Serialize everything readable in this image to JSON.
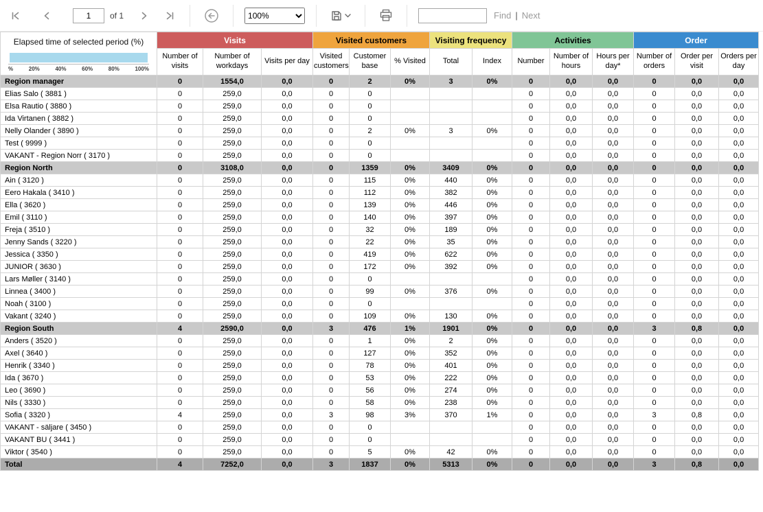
{
  "toolbar": {
    "page_input": "1",
    "of_label": "of 1",
    "zoom_value": "100%",
    "find_value": "",
    "find_label": "Find",
    "find_divider": "|",
    "next_label": "Next",
    "icons": {
      "first_page": "⏮",
      "previous_page": "◀",
      "next_page": "▶",
      "last_page": "⏭",
      "back": "←",
      "save": "💾",
      "save_caret": "⌄",
      "print": "🖨"
    }
  },
  "chart": {
    "title": "Elapsed time of selected period (%)",
    "bar_color": "#a8d9ed",
    "value_pct": 100,
    "axis_ticks": [
      "%",
      "20%",
      "40%",
      "60%",
      "80%",
      "100%"
    ]
  },
  "table": {
    "groups": [
      {
        "label": "Visits",
        "color": "#cd5c5c",
        "text_color": "#ffffff",
        "span": 3
      },
      {
        "label": "Visited customers",
        "color": "#efa43d",
        "text_color": "#000000",
        "span": 3
      },
      {
        "label": "Visiting frequency",
        "color": "#ece27d",
        "text_color": "#000000",
        "span": 2
      },
      {
        "label": "Activities",
        "color": "#80c596",
        "text_color": "#000000",
        "span": 3
      },
      {
        "label": "Order",
        "color": "#3a8bcf",
        "text_color": "#ffffff",
        "span": 3
      }
    ],
    "columns": [
      "Number of visits",
      "Number of workdays",
      "Visits per day",
      "Visited customers",
      "Customer base",
      "% Visited",
      "Total",
      "Index",
      "Number",
      "Number of hours",
      "Hours per day*",
      "Number of orders",
      "Order per visit",
      "Orders per day"
    ],
    "rows": [
      {
        "name": "Region manager",
        "type": "region",
        "cells": [
          "0",
          "1554,0",
          "0,0",
          "0",
          "2",
          "0%",
          "3",
          "0%",
          "0",
          "0,0",
          "0,0",
          "0",
          "0,0",
          "0,0"
        ]
      },
      {
        "name": "Elias Salo ( 3881 )",
        "type": "person",
        "cells": [
          "0",
          "259,0",
          "0,0",
          "0",
          "0",
          "",
          "",
          "",
          "0",
          "0,0",
          "0,0",
          "0",
          "0,0",
          "0,0"
        ]
      },
      {
        "name": "Elsa Rautio ( 3880 )",
        "type": "person",
        "cells": [
          "0",
          "259,0",
          "0,0",
          "0",
          "0",
          "",
          "",
          "",
          "0",
          "0,0",
          "0,0",
          "0",
          "0,0",
          "0,0"
        ]
      },
      {
        "name": "Ida Virtanen ( 3882 )",
        "type": "person",
        "cells": [
          "0",
          "259,0",
          "0,0",
          "0",
          "0",
          "",
          "",
          "",
          "0",
          "0,0",
          "0,0",
          "0",
          "0,0",
          "0,0"
        ]
      },
      {
        "name": "Nelly Olander ( 3890 )",
        "type": "person",
        "cells": [
          "0",
          "259,0",
          "0,0",
          "0",
          "2",
          "0%",
          "3",
          "0%",
          "0",
          "0,0",
          "0,0",
          "0",
          "0,0",
          "0,0"
        ]
      },
      {
        "name": "Test ( 9999 )",
        "type": "person",
        "cells": [
          "0",
          "259,0",
          "0,0",
          "0",
          "0",
          "",
          "",
          "",
          "0",
          "0,0",
          "0,0",
          "0",
          "0,0",
          "0,0"
        ]
      },
      {
        "name": "VAKANT - Region Norr ( 3170 )",
        "type": "person",
        "cells": [
          "0",
          "259,0",
          "0,0",
          "0",
          "0",
          "",
          "",
          "",
          "0",
          "0,0",
          "0,0",
          "0",
          "0,0",
          "0,0"
        ]
      },
      {
        "name": "Region North",
        "type": "region",
        "cells": [
          "0",
          "3108,0",
          "0,0",
          "0",
          "1359",
          "0%",
          "3409",
          "0%",
          "0",
          "0,0",
          "0,0",
          "0",
          "0,0",
          "0,0"
        ]
      },
      {
        "name": "Ain ( 3120 )",
        "type": "person",
        "cells": [
          "0",
          "259,0",
          "0,0",
          "0",
          "115",
          "0%",
          "440",
          "0%",
          "0",
          "0,0",
          "0,0",
          "0",
          "0,0",
          "0,0"
        ]
      },
      {
        "name": "Eero Hakala ( 3410 )",
        "type": "person",
        "cells": [
          "0",
          "259,0",
          "0,0",
          "0",
          "112",
          "0%",
          "382",
          "0%",
          "0",
          "0,0",
          "0,0",
          "0",
          "0,0",
          "0,0"
        ]
      },
      {
        "name": "Ella ( 3620 )",
        "type": "person",
        "cells": [
          "0",
          "259,0",
          "0,0",
          "0",
          "139",
          "0%",
          "446",
          "0%",
          "0",
          "0,0",
          "0,0",
          "0",
          "0,0",
          "0,0"
        ]
      },
      {
        "name": "Emil ( 3110 )",
        "type": "person",
        "cells": [
          "0",
          "259,0",
          "0,0",
          "0",
          "140",
          "0%",
          "397",
          "0%",
          "0",
          "0,0",
          "0,0",
          "0",
          "0,0",
          "0,0"
        ]
      },
      {
        "name": "Freja ( 3510 )",
        "type": "person",
        "cells": [
          "0",
          "259,0",
          "0,0",
          "0",
          "32",
          "0%",
          "189",
          "0%",
          "0",
          "0,0",
          "0,0",
          "0",
          "0,0",
          "0,0"
        ]
      },
      {
        "name": "Jenny Sands ( 3220 )",
        "type": "person",
        "cells": [
          "0",
          "259,0",
          "0,0",
          "0",
          "22",
          "0%",
          "35",
          "0%",
          "0",
          "0,0",
          "0,0",
          "0",
          "0,0",
          "0,0"
        ]
      },
      {
        "name": "Jessica ( 3350 )",
        "type": "person",
        "cells": [
          "0",
          "259,0",
          "0,0",
          "0",
          "419",
          "0%",
          "622",
          "0%",
          "0",
          "0,0",
          "0,0",
          "0",
          "0,0",
          "0,0"
        ]
      },
      {
        "name": "JUNIOR ( 3630 )",
        "type": "person",
        "cells": [
          "0",
          "259,0",
          "0,0",
          "0",
          "172",
          "0%",
          "392",
          "0%",
          "0",
          "0,0",
          "0,0",
          "0",
          "0,0",
          "0,0"
        ]
      },
      {
        "name": "Lars Møller ( 3140 )",
        "type": "person",
        "cells": [
          "0",
          "259,0",
          "0,0",
          "0",
          "0",
          "",
          "",
          "",
          "0",
          "0,0",
          "0,0",
          "0",
          "0,0",
          "0,0"
        ]
      },
      {
        "name": "Linnea ( 3400 )",
        "type": "person",
        "cells": [
          "0",
          "259,0",
          "0,0",
          "0",
          "99",
          "0%",
          "376",
          "0%",
          "0",
          "0,0",
          "0,0",
          "0",
          "0,0",
          "0,0"
        ]
      },
      {
        "name": "Noah ( 3100 )",
        "type": "person",
        "cells": [
          "0",
          "259,0",
          "0,0",
          "0",
          "0",
          "",
          "",
          "",
          "0",
          "0,0",
          "0,0",
          "0",
          "0,0",
          "0,0"
        ]
      },
      {
        "name": "Vakant ( 3240 )",
        "type": "person",
        "cells": [
          "0",
          "259,0",
          "0,0",
          "0",
          "109",
          "0%",
          "130",
          "0%",
          "0",
          "0,0",
          "0,0",
          "0",
          "0,0",
          "0,0"
        ]
      },
      {
        "name": "Region South",
        "type": "region",
        "cells": [
          "4",
          "2590,0",
          "0,0",
          "3",
          "476",
          "1%",
          "1901",
          "0%",
          "0",
          "0,0",
          "0,0",
          "3",
          "0,8",
          "0,0"
        ]
      },
      {
        "name": "Anders ( 3520 )",
        "type": "person",
        "cells": [
          "0",
          "259,0",
          "0,0",
          "0",
          "1",
          "0%",
          "2",
          "0%",
          "0",
          "0,0",
          "0,0",
          "0",
          "0,0",
          "0,0"
        ]
      },
      {
        "name": "Axel ( 3640 )",
        "type": "person",
        "cells": [
          "0",
          "259,0",
          "0,0",
          "0",
          "127",
          "0%",
          "352",
          "0%",
          "0",
          "0,0",
          "0,0",
          "0",
          "0,0",
          "0,0"
        ]
      },
      {
        "name": "Henrik ( 3340 )",
        "type": "person",
        "cells": [
          "0",
          "259,0",
          "0,0",
          "0",
          "78",
          "0%",
          "401",
          "0%",
          "0",
          "0,0",
          "0,0",
          "0",
          "0,0",
          "0,0"
        ]
      },
      {
        "name": "Ida ( 3670 )",
        "type": "person",
        "cells": [
          "0",
          "259,0",
          "0,0",
          "0",
          "53",
          "0%",
          "222",
          "0%",
          "0",
          "0,0",
          "0,0",
          "0",
          "0,0",
          "0,0"
        ]
      },
      {
        "name": "Leo ( 3690 )",
        "type": "person",
        "cells": [
          "0",
          "259,0",
          "0,0",
          "0",
          "56",
          "0%",
          "274",
          "0%",
          "0",
          "0,0",
          "0,0",
          "0",
          "0,0",
          "0,0"
        ]
      },
      {
        "name": "Nils ( 3330 )",
        "type": "person",
        "cells": [
          "0",
          "259,0",
          "0,0",
          "0",
          "58",
          "0%",
          "238",
          "0%",
          "0",
          "0,0",
          "0,0",
          "0",
          "0,0",
          "0,0"
        ]
      },
      {
        "name": "Sofia ( 3320 )",
        "type": "person",
        "cells": [
          "4",
          "259,0",
          "0,0",
          "3",
          "98",
          "3%",
          "370",
          "1%",
          "0",
          "0,0",
          "0,0",
          "3",
          "0,8",
          "0,0"
        ]
      },
      {
        "name": "VAKANT - säljare ( 3450 )",
        "type": "person",
        "cells": [
          "0",
          "259,0",
          "0,0",
          "0",
          "0",
          "",
          "",
          "",
          "0",
          "0,0",
          "0,0",
          "0",
          "0,0",
          "0,0"
        ]
      },
      {
        "name": "VAKANT BU ( 3441 )",
        "type": "person",
        "cells": [
          "0",
          "259,0",
          "0,0",
          "0",
          "0",
          "",
          "",
          "",
          "0",
          "0,0",
          "0,0",
          "0",
          "0,0",
          "0,0"
        ]
      },
      {
        "name": "Viktor ( 3540 )",
        "type": "person",
        "cells": [
          "0",
          "259,0",
          "0,0",
          "0",
          "5",
          "0%",
          "42",
          "0%",
          "0",
          "0,0",
          "0,0",
          "0",
          "0,0",
          "0,0"
        ]
      },
      {
        "name": "Total",
        "type": "total",
        "cells": [
          "4",
          "7252,0",
          "0,0",
          "3",
          "1837",
          "0%",
          "5313",
          "0%",
          "0",
          "0,0",
          "0,0",
          "3",
          "0,8",
          "0,0"
        ]
      }
    ]
  }
}
